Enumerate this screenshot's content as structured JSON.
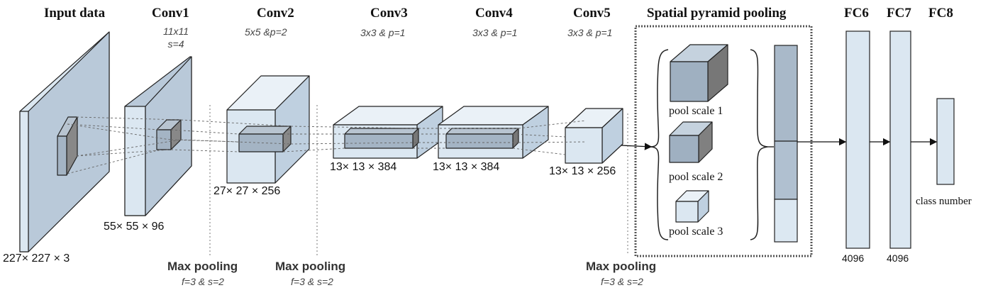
{
  "layers": {
    "input": {
      "title": "Input data",
      "dims": "227× 227 × 3"
    },
    "conv1": {
      "title": "Conv1",
      "param_line1": "11x11",
      "param_line2": "s=4",
      "dims": "55× 55 × 96"
    },
    "conv2": {
      "title": "Conv2",
      "param": "5x5 &p=2",
      "dims": "27× 27 × 256"
    },
    "conv3": {
      "title": "Conv3",
      "param": "3x3 & p=1",
      "dims": "13× 13 × 384"
    },
    "conv4": {
      "title": "Conv4",
      "param": "3x3 & p=1",
      "dims": "13× 13 × 384"
    },
    "conv5": {
      "title": "Conv5",
      "param": "3x3 & p=1",
      "dims": "13× 13 × 256"
    }
  },
  "spp": {
    "title": "Spatial pyramid pooling",
    "scales": [
      "pool scale 1",
      "pool scale 2",
      "pool scale 3"
    ]
  },
  "fc": {
    "fc6": {
      "title": "FC6",
      "size": "4096"
    },
    "fc7": {
      "title": "FC7",
      "size": "4096"
    },
    "fc8": {
      "title": "FC8",
      "label": "class number"
    }
  },
  "max_pooling": [
    {
      "label": "Max pooling",
      "param": "f=3 & s=2"
    },
    {
      "label": "Max pooling",
      "param": "f=3 & s=2"
    },
    {
      "label": "Max pooling",
      "param": "f=3 & s=2"
    }
  ],
  "colors": {
    "front": "#dbe7f1",
    "side": "#bfd0e0",
    "top": "#eaf1f7",
    "kernel": "#a4b4c4",
    "dark_side": "#777777",
    "vector_dark": "#a9b9c9",
    "vector_light": "#dce8f2",
    "stroke": "#222222"
  }
}
